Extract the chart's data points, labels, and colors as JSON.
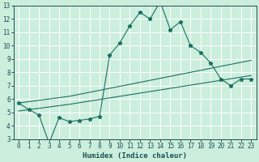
{
  "xlabel": "Humidex (Indice chaleur)",
  "background_color": "#cceedd",
  "grid_color": "#ffffff",
  "line_color": "#1a7060",
  "xlim": [
    -0.5,
    23.5
  ],
  "ylim": [
    3,
    13
  ],
  "xticks": [
    0,
    1,
    2,
    3,
    4,
    5,
    6,
    7,
    8,
    9,
    10,
    11,
    12,
    13,
    14,
    15,
    16,
    17,
    18,
    19,
    20,
    21,
    22,
    23
  ],
  "yticks": [
    3,
    4,
    5,
    6,
    7,
    8,
    9,
    10,
    11,
    12,
    13
  ],
  "line1_x": [
    0,
    1,
    2,
    3,
    4,
    5,
    6,
    7,
    8,
    9,
    10,
    11,
    12,
    13,
    14,
    15,
    16,
    17,
    18,
    19,
    20,
    21,
    22,
    23
  ],
  "line1_y": [
    5.7,
    5.2,
    4.8,
    2.7,
    4.6,
    4.3,
    4.4,
    4.5,
    4.7,
    9.3,
    10.2,
    11.5,
    12.5,
    12.0,
    13.3,
    11.2,
    11.8,
    10.0,
    9.5,
    8.7,
    7.5,
    7.0,
    7.5,
    7.5
  ],
  "line2_x": [
    0,
    1,
    2,
    3,
    4,
    5,
    6,
    7,
    8,
    9,
    10,
    11,
    12,
    13,
    14,
    15,
    16,
    17,
    18,
    19,
    20,
    21,
    22,
    23
  ],
  "line2_y": [
    5.7,
    5.8,
    5.9,
    6.0,
    6.1,
    6.2,
    6.35,
    6.5,
    6.65,
    6.8,
    6.95,
    7.1,
    7.25,
    7.4,
    7.55,
    7.7,
    7.85,
    8.0,
    8.15,
    8.3,
    8.45,
    8.6,
    8.75,
    8.9
  ],
  "line3_x": [
    0,
    1,
    2,
    3,
    4,
    5,
    6,
    7,
    8,
    9,
    10,
    11,
    12,
    13,
    14,
    15,
    16,
    17,
    18,
    19,
    20,
    21,
    22,
    23
  ],
  "line3_y": [
    5.1,
    5.2,
    5.3,
    5.4,
    5.5,
    5.6,
    5.72,
    5.84,
    5.96,
    6.08,
    6.2,
    6.32,
    6.44,
    6.56,
    6.68,
    6.8,
    6.92,
    7.04,
    7.16,
    7.28,
    7.4,
    7.52,
    7.64,
    7.76
  ]
}
